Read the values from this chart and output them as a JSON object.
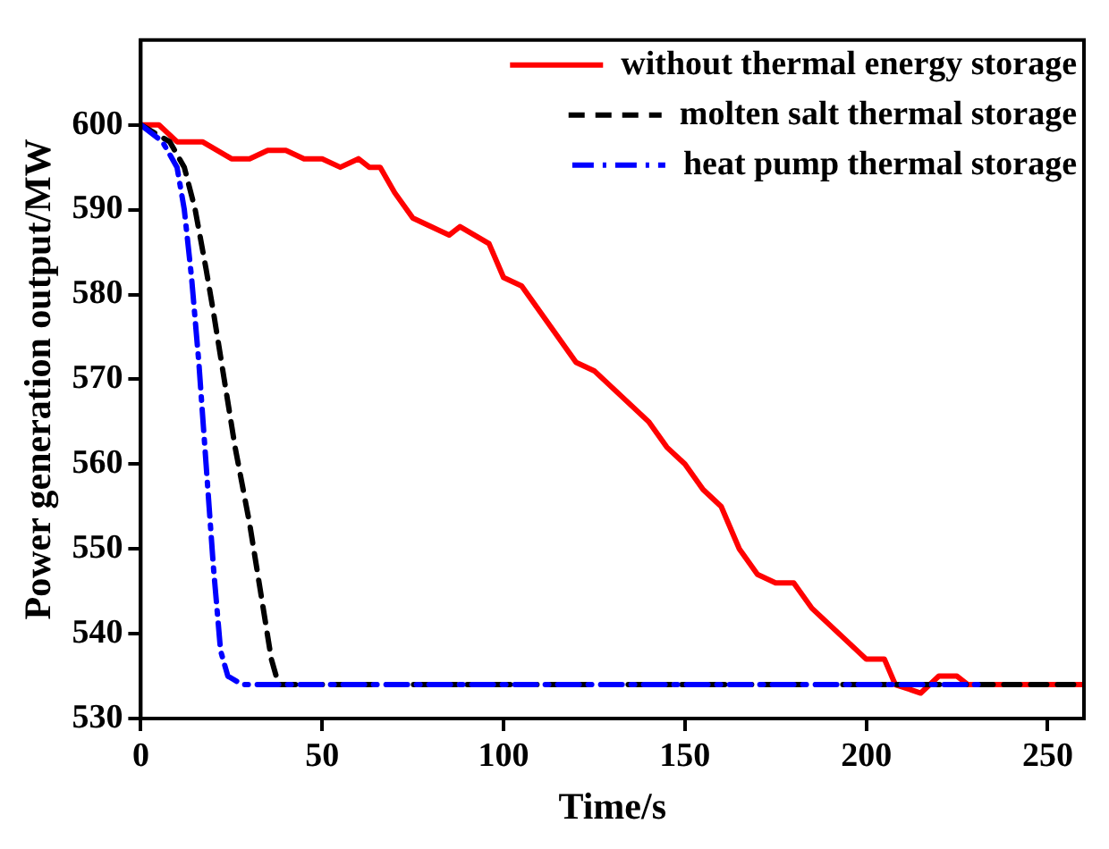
{
  "chart_data": {
    "type": "line",
    "xlabel": "Time/s",
    "ylabel": "Power generation output/MW",
    "xlim": [
      0,
      260
    ],
    "xticks": [
      0,
      50,
      100,
      150,
      200,
      250
    ],
    "ylim": [
      530,
      610
    ],
    "yticks": [
      530,
      540,
      550,
      560,
      570,
      580,
      590,
      600
    ],
    "grid": false,
    "legend": "top right",
    "marker": "none",
    "series": [
      {
        "name": "without thermal energy storage",
        "color": "#ff0000",
        "line_style": "solid",
        "x": [
          0,
          5,
          10,
          17,
          25,
          30,
          35,
          40,
          45,
          50,
          55,
          60,
          63,
          66,
          70,
          75,
          80,
          85,
          88,
          92,
          96,
          100,
          105,
          110,
          115,
          120,
          125,
          130,
          135,
          140,
          145,
          150,
          155,
          160,
          165,
          170,
          175,
          180,
          185,
          190,
          195,
          200,
          205,
          208,
          215,
          220,
          225,
          228,
          260
        ],
        "values": [
          600,
          600,
          598,
          598,
          596,
          596,
          597,
          597,
          596,
          596,
          595,
          596,
          595,
          595,
          592,
          589,
          588,
          587,
          588,
          587,
          586,
          582,
          581,
          578,
          575,
          572,
          571,
          569,
          567,
          565,
          562,
          560,
          557,
          555,
          550,
          547,
          546,
          546,
          543,
          541,
          539,
          537,
          537,
          534,
          533,
          535,
          535,
          534,
          534
        ]
      },
      {
        "name": "molten salt thermal storage",
        "color": "#000000",
        "line_style": "dashed",
        "x": [
          0,
          8,
          12,
          15,
          18,
          20,
          23,
          26,
          30,
          33,
          36,
          38,
          260
        ],
        "values": [
          600,
          598,
          595,
          590,
          583,
          578,
          570,
          562,
          553,
          545,
          537,
          534,
          534
        ]
      },
      {
        "name": "heat pump thermal storage",
        "color": "#0000ff",
        "line_style": "dashdot",
        "x": [
          0,
          6,
          10,
          12,
          14,
          16,
          18,
          20,
          22,
          24,
          28,
          232
        ],
        "values": [
          600,
          598,
          595,
          590,
          582,
          572,
          560,
          548,
          538,
          535,
          534,
          534
        ]
      }
    ]
  }
}
